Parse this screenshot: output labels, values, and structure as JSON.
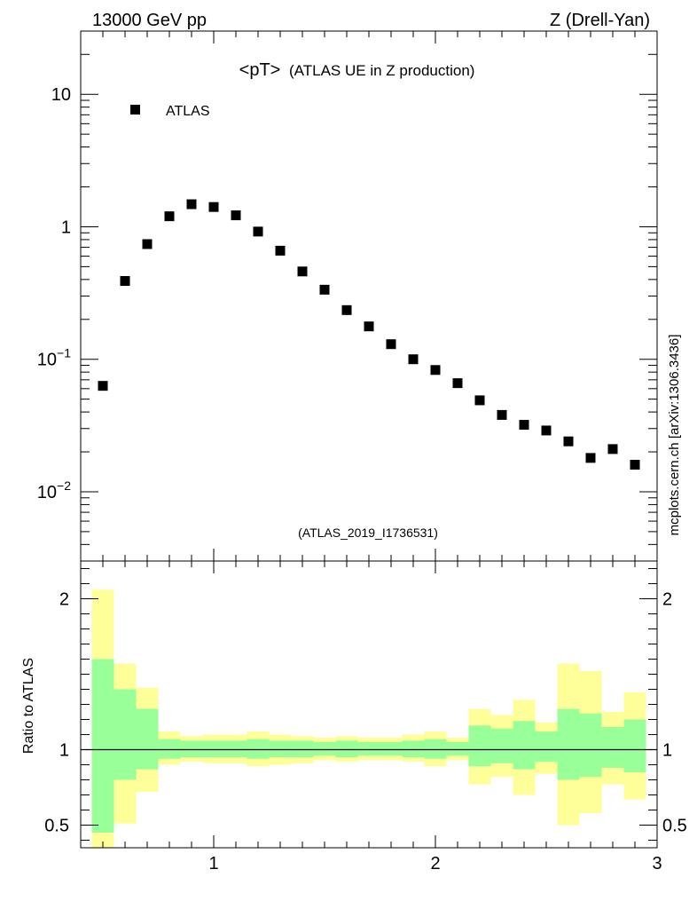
{
  "header": {
    "left_text": "13000 GeV pp",
    "right_text": "Z (Drell-Yan)",
    "side_text": "mcplots.cern.ch [arXiv:1306.3436]"
  },
  "chart_data": [
    {
      "type": "scatter",
      "title_main": "<pT>",
      "title_sub": "(ATLAS UE in Z production)",
      "analysis_id": "(ATLAS_2019_I1736531)",
      "yscale": "log",
      "xlim": [
        0.4,
        3.0
      ],
      "ylim": [
        0.003,
        30
      ],
      "ytick_labels": [
        {
          "value": 0.01,
          "base": "10",
          "exp": "−2"
        },
        {
          "value": 0.1,
          "base": "10",
          "exp": "−1"
        },
        {
          "value": 1,
          "text": "1"
        },
        {
          "value": 10,
          "text": "10"
        }
      ],
      "legend": {
        "position": "top-left",
        "entries": [
          "ATLAS"
        ]
      },
      "series": [
        {
          "name": "ATLAS",
          "color": "#000000",
          "x": [
            0.5,
            0.6,
            0.7,
            0.8,
            0.9,
            1.0,
            1.1,
            1.2,
            1.3,
            1.4,
            1.5,
            1.6,
            1.7,
            1.8,
            1.9,
            2.0,
            2.1,
            2.2,
            2.3,
            2.4,
            2.5,
            2.6,
            2.7,
            2.8,
            2.9
          ],
          "y": [
            0.063,
            0.39,
            0.74,
            1.2,
            1.48,
            1.41,
            1.22,
            0.92,
            0.66,
            0.46,
            0.335,
            0.235,
            0.177,
            0.13,
            0.1,
            0.083,
            0.066,
            0.049,
            0.038,
            0.032,
            0.029,
            0.024,
            0.018,
            0.021,
            0.016
          ]
        }
      ]
    },
    {
      "type": "area",
      "ylabel": "Ratio to ATLAS",
      "xlim": [
        0.4,
        3.0
      ],
      "ylim": [
        0.35,
        2.25
      ],
      "xtick_labels": [
        "1",
        "2",
        "3"
      ],
      "ytick_labels": [
        "0.5",
        "1",
        "2"
      ],
      "reference_line": 1,
      "band_colors": {
        "inner": "#99ff99",
        "outer": "#ffff99"
      },
      "bins": {
        "edges": [
          0.45,
          0.55,
          0.65,
          0.75,
          0.85,
          0.95,
          1.05,
          1.15,
          1.25,
          1.35,
          1.45,
          1.55,
          1.65,
          1.75,
          1.85,
          1.95,
          2.05,
          2.15,
          2.25,
          2.35,
          2.45,
          2.55,
          2.65,
          2.75,
          2.85,
          2.95
        ],
        "inner_low": [
          0.45,
          0.8,
          0.87,
          0.94,
          0.95,
          0.95,
          0.95,
          0.94,
          0.95,
          0.95,
          0.96,
          0.95,
          0.96,
          0.96,
          0.95,
          0.94,
          0.96,
          0.89,
          0.91,
          0.87,
          0.92,
          0.8,
          0.82,
          0.88,
          0.85
        ],
        "inner_high": [
          1.6,
          1.4,
          1.27,
          1.07,
          1.06,
          1.06,
          1.06,
          1.07,
          1.06,
          1.06,
          1.05,
          1.06,
          1.05,
          1.05,
          1.06,
          1.07,
          1.05,
          1.16,
          1.14,
          1.19,
          1.12,
          1.27,
          1.24,
          1.15,
          1.2
        ],
        "outer_low": [
          0.35,
          0.51,
          0.72,
          0.9,
          0.92,
          0.91,
          0.91,
          0.89,
          0.9,
          0.91,
          0.93,
          0.92,
          0.93,
          0.93,
          0.92,
          0.89,
          0.93,
          0.77,
          0.82,
          0.7,
          0.84,
          0.5,
          0.58,
          0.77,
          0.67
        ],
        "outer_high": [
          2.06,
          1.57,
          1.41,
          1.12,
          1.09,
          1.1,
          1.1,
          1.12,
          1.1,
          1.09,
          1.08,
          1.09,
          1.08,
          1.08,
          1.1,
          1.12,
          1.08,
          1.27,
          1.23,
          1.33,
          1.18,
          1.57,
          1.52,
          1.25,
          1.38
        ]
      }
    }
  ]
}
